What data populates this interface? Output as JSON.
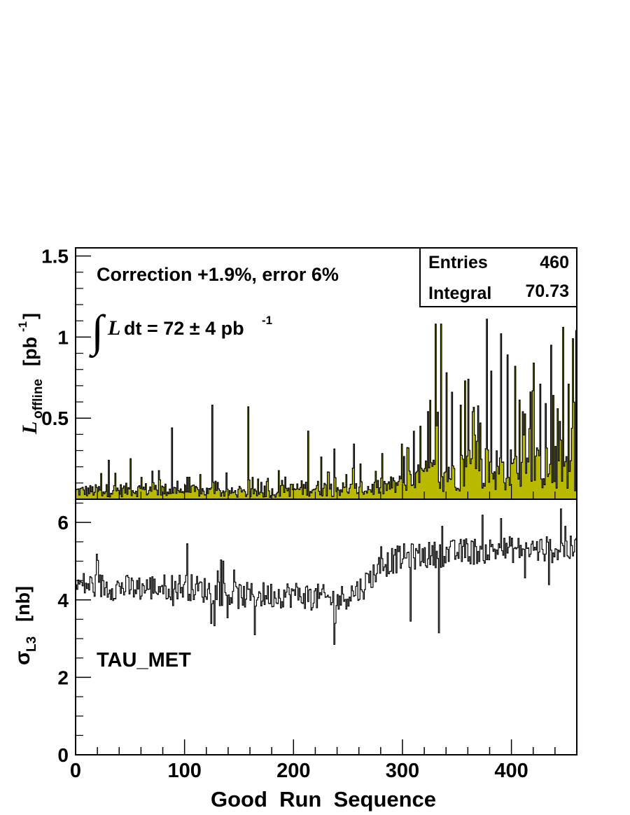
{
  "chart_data": [
    {
      "type": "line",
      "style": "filled-histogram",
      "fill_color": "#b9b900",
      "line_color": "#000000",
      "ylabel_main": "L",
      "ylabel_sub": "offline",
      "ylabel_unit_prefix": "[pb",
      "ylabel_unit_exp": "-1",
      "ylabel_unit_suffix": "]",
      "xlim": [
        0,
        460
      ],
      "ylim": [
        0,
        1.55
      ],
      "yticks": [
        {
          "value": 0.5,
          "label": "0.5"
        },
        {
          "value": 1.0,
          "label": "1"
        },
        {
          "value": 1.5,
          "label": "1.5"
        }
      ],
      "annotation_correction": "Correction +1.9%, error 6%",
      "integral_annotation": {
        "symbol": "∫",
        "var": "L",
        "rest": "dt = 72 ± 4 pb",
        "exp": "-1"
      },
      "stats_box": {
        "entries_label": "Entries",
        "entries_value": "460",
        "integral_label": "Integral",
        "integral_value": "70.73"
      },
      "spikes": [
        [
          30,
          0.24
        ],
        [
          50,
          0.25
        ],
        [
          88,
          0.44
        ],
        [
          125,
          0.58
        ],
        [
          158,
          0.57
        ],
        [
          213,
          0.42
        ],
        [
          225,
          0.26
        ],
        [
          237,
          0.31
        ],
        [
          255,
          0.34
        ],
        [
          299,
          0.34
        ],
        [
          316,
          0.45
        ],
        [
          325,
          0.61
        ],
        [
          330,
          1.08
        ],
        [
          335,
          1.08
        ],
        [
          340,
          0.78
        ],
        [
          345,
          0.66
        ],
        [
          353,
          0.58
        ],
        [
          357,
          0.73
        ],
        [
          360,
          0.74
        ],
        [
          364,
          0.54
        ],
        [
          371,
          0.47
        ],
        [
          377,
          1.11
        ],
        [
          381,
          0.79
        ],
        [
          390,
          1.02
        ],
        [
          396,
          0.89
        ],
        [
          403,
          0.82
        ],
        [
          410,
          0.54
        ],
        [
          420,
          0.84
        ],
        [
          426,
          0.71
        ],
        [
          431,
          0.59
        ],
        [
          436,
          0.95
        ],
        [
          444,
          0.48
        ],
        [
          447,
          1.06
        ],
        [
          452,
          0.71
        ],
        [
          456,
          0.99
        ],
        [
          460,
          1.04
        ]
      ],
      "baseline_levels": [
        [
          0,
          0.05
        ],
        [
          70,
          0.06
        ],
        [
          110,
          0.05
        ],
        [
          170,
          0.035
        ],
        [
          210,
          0.07
        ],
        [
          260,
          0.06
        ],
        [
          300,
          0.09
        ],
        [
          320,
          0.14
        ],
        [
          360,
          0.2
        ],
        [
          400,
          0.18
        ],
        [
          460,
          0.2
        ]
      ]
    },
    {
      "type": "line",
      "style": "step",
      "line_color": "#000000",
      "ylabel_sym": "σ",
      "ylabel_sub": "L3",
      "ylabel_unit": "[nb]",
      "xlabel": "Good  Run  Sequence",
      "xlim": [
        0,
        460
      ],
      "ylim": [
        0,
        6.6
      ],
      "xticks": [
        {
          "value": 0,
          "label": "0"
        },
        {
          "value": 100,
          "label": "100"
        },
        {
          "value": 200,
          "label": "200"
        },
        {
          "value": 300,
          "label": "300"
        },
        {
          "value": 400,
          "label": "400"
        }
      ],
      "yticks": [
        {
          "value": 0,
          "label": "0"
        },
        {
          "value": 2,
          "label": "2"
        },
        {
          "value": 4,
          "label": "4"
        },
        {
          "value": 6,
          "label": "6"
        }
      ],
      "annotation_trigger": "TAU_MET",
      "trend": [
        [
          0,
          4.4
        ],
        [
          50,
          4.3
        ],
        [
          100,
          4.35
        ],
        [
          150,
          4.1
        ],
        [
          200,
          4.15
        ],
        [
          240,
          4.0
        ],
        [
          262,
          4.3
        ],
        [
          280,
          4.9
        ],
        [
          300,
          5.1
        ],
        [
          360,
          5.25
        ],
        [
          400,
          5.3
        ],
        [
          430,
          5.3
        ],
        [
          460,
          5.3
        ]
      ],
      "spikes": [
        [
          102,
          5.45
        ],
        [
          164,
          3.1
        ],
        [
          237,
          2.85
        ],
        [
          307,
          3.45
        ],
        [
          333,
          3.15
        ],
        [
          390,
          6.1
        ],
        [
          445,
          6.35
        ],
        [
          449,
          5.9
        ]
      ]
    }
  ]
}
